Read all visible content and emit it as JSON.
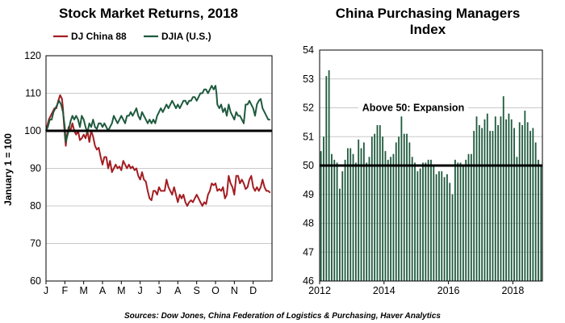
{
  "sources": "Sources: Dow Jones, China Federation of Logistics & Purchasing, Haver Analytics",
  "chart_data": [
    {
      "type": "line",
      "title": "Stock Market Returns, 2018",
      "ylabel": "January 1 = 100",
      "ylim": [
        60,
        120
      ],
      "yticks": [
        60,
        70,
        80,
        90,
        100,
        110,
        120
      ],
      "x_tick_labels": [
        "J",
        "F",
        "M",
        "A",
        "M",
        "J",
        "J",
        "A",
        "S",
        "O",
        "N",
        "D"
      ],
      "x_unit": "month of 2018 (0 = Jan 1, 12 = Dec 31)",
      "xlim": [
        0,
        12
      ],
      "reference_line": 100,
      "grid": true,
      "legend_position": "top",
      "series": [
        {
          "name": "DJ China 88",
          "color": "#a31d22",
          "points": [
            [
              0,
              100
            ],
            [
              0.15,
              103
            ],
            [
              0.3,
              104.5
            ],
            [
              0.45,
              106
            ],
            [
              0.55,
              106
            ],
            [
              0.65,
              108
            ],
            [
              0.75,
              109.5
            ],
            [
              0.85,
              108.5
            ],
            [
              0.9,
              106
            ],
            [
              0.95,
              102
            ],
            [
              1.0,
              99
            ],
            [
              1.05,
              96
            ],
            [
              1.1,
              98.5
            ],
            [
              1.2,
              101
            ],
            [
              1.3,
              100
            ],
            [
              1.4,
              102
            ],
            [
              1.5,
              100
            ],
            [
              1.6,
              99
            ],
            [
              1.7,
              100
            ],
            [
              1.8,
              97.5
            ],
            [
              1.9,
              98
            ],
            [
              2.0,
              99
            ],
            [
              2.1,
              98
            ],
            [
              2.2,
              100
            ],
            [
              2.3,
              97
            ],
            [
              2.4,
              100
            ],
            [
              2.5,
              98.5
            ],
            [
              2.6,
              96
            ],
            [
              2.7,
              95
            ],
            [
              2.8,
              95.5
            ],
            [
              2.9,
              93
            ],
            [
              3.0,
              91
            ],
            [
              3.1,
              93
            ],
            [
              3.2,
              93
            ],
            [
              3.3,
              90
            ],
            [
              3.4,
              92
            ],
            [
              3.5,
              89
            ],
            [
              3.6,
              90
            ],
            [
              3.7,
              91
            ],
            [
              3.8,
              90
            ],
            [
              3.9,
              90.5
            ],
            [
              4.0,
              89.5
            ],
            [
              4.1,
              92
            ],
            [
              4.2,
              91
            ],
            [
              4.3,
              90
            ],
            [
              4.4,
              91
            ],
            [
              4.5,
              90
            ],
            [
              4.6,
              90.5
            ],
            [
              4.7,
              89.5
            ],
            [
              4.8,
              90
            ],
            [
              4.9,
              88
            ],
            [
              5.0,
              87
            ],
            [
              5.1,
              89
            ],
            [
              5.2,
              87
            ],
            [
              5.3,
              86.5
            ],
            [
              5.4,
              84
            ],
            [
              5.5,
              82
            ],
            [
              5.6,
              81.5
            ],
            [
              5.7,
              84
            ],
            [
              5.8,
              84
            ],
            [
              5.9,
              83
            ],
            [
              6.0,
              85
            ],
            [
              6.1,
              84
            ],
            [
              6.2,
              84
            ],
            [
              6.3,
              84
            ],
            [
              6.4,
              87
            ],
            [
              6.5,
              85
            ],
            [
              6.6,
              84
            ],
            [
              6.7,
              83
            ],
            [
              6.8,
              85
            ],
            [
              6.9,
              83
            ],
            [
              7.0,
              81
            ],
            [
              7.1,
              83
            ],
            [
              7.2,
              82
            ],
            [
              7.3,
              83
            ],
            [
              7.4,
              81
            ],
            [
              7.5,
              80
            ],
            [
              7.6,
              81
            ],
            [
              7.7,
              81.5
            ],
            [
              7.8,
              81
            ],
            [
              7.9,
              82
            ],
            [
              8.0,
              83
            ],
            [
              8.1,
              82
            ],
            [
              8.2,
              81
            ],
            [
              8.3,
              80
            ],
            [
              8.4,
              81
            ],
            [
              8.5,
              80.5
            ],
            [
              8.6,
              83
            ],
            [
              8.7,
              84
            ],
            [
              8.8,
              86
            ],
            [
              8.9,
              85.5
            ],
            [
              9.0,
              86
            ],
            [
              9.1,
              84
            ],
            [
              9.2,
              84.5
            ],
            [
              9.3,
              84
            ],
            [
              9.4,
              85
            ],
            [
              9.5,
              82
            ],
            [
              9.6,
              83
            ],
            [
              9.7,
              88
            ],
            [
              9.8,
              86
            ],
            [
              9.9,
              85
            ],
            [
              10.0,
              83
            ],
            [
              10.1,
              88
            ],
            [
              10.2,
              88
            ],
            [
              10.3,
              86
            ],
            [
              10.4,
              87
            ],
            [
              10.5,
              86
            ],
            [
              10.6,
              84.5
            ],
            [
              10.7,
              85
            ],
            [
              10.8,
              87
            ],
            [
              10.9,
              88
            ],
            [
              11.0,
              85
            ],
            [
              11.1,
              84
            ],
            [
              11.2,
              85
            ],
            [
              11.3,
              84
            ],
            [
              11.4,
              85
            ],
            [
              11.5,
              87
            ],
            [
              11.6,
              85
            ],
            [
              11.7,
              84
            ],
            [
              11.8,
              84
            ],
            [
              11.9,
              83.5
            ]
          ]
        },
        {
          "name": "DJIA (U.S.)",
          "color": "#1f5a3e",
          "points": [
            [
              0,
              100
            ],
            [
              0.1,
              101
            ],
            [
              0.2,
              103
            ],
            [
              0.3,
              103
            ],
            [
              0.4,
              105
            ],
            [
              0.5,
              106
            ],
            [
              0.6,
              107
            ],
            [
              0.7,
              108
            ],
            [
              0.8,
              107
            ],
            [
              0.9,
              105
            ],
            [
              1.0,
              101
            ],
            [
              1.05,
              97
            ],
            [
              1.1,
              98
            ],
            [
              1.2,
              100
            ],
            [
              1.3,
              102.5
            ],
            [
              1.4,
              104
            ],
            [
              1.5,
              103
            ],
            [
              1.6,
              104
            ],
            [
              1.7,
              103
            ],
            [
              1.8,
              101
            ],
            [
              1.9,
              104
            ],
            [
              2.0,
              103
            ],
            [
              2.1,
              101
            ],
            [
              2.2,
              99.5
            ],
            [
              2.3,
              102
            ],
            [
              2.4,
              101
            ],
            [
              2.5,
              103
            ],
            [
              2.6,
              101
            ],
            [
              2.7,
              100.5
            ],
            [
              2.8,
              102
            ],
            [
              2.9,
              102
            ],
            [
              3.0,
              101
            ],
            [
              3.1,
              102
            ],
            [
              3.2,
              101
            ],
            [
              3.3,
              100
            ],
            [
              3.4,
              101
            ],
            [
              3.5,
              102
            ],
            [
              3.6,
              104
            ],
            [
              3.7,
              103
            ],
            [
              3.8,
              102
            ],
            [
              3.9,
              103
            ],
            [
              4.0,
              104
            ],
            [
              4.1,
              103
            ],
            [
              4.2,
              102
            ],
            [
              4.3,
              104
            ],
            [
              4.4,
              104
            ],
            [
              4.5,
              105
            ],
            [
              4.6,
              104
            ],
            [
              4.7,
              105
            ],
            [
              4.8,
              106
            ],
            [
              4.9,
              104
            ],
            [
              5.0,
              103
            ],
            [
              5.1,
              105
            ],
            [
              5.2,
              104
            ],
            [
              5.3,
              103
            ],
            [
              5.4,
              102
            ],
            [
              5.5,
              103
            ],
            [
              5.6,
              102
            ],
            [
              5.7,
              103
            ],
            [
              5.8,
              102
            ],
            [
              5.9,
              104
            ],
            [
              6.0,
              105
            ],
            [
              6.1,
              106
            ],
            [
              6.2,
              105
            ],
            [
              6.3,
              106
            ],
            [
              6.4,
              107
            ],
            [
              6.5,
              106
            ],
            [
              6.6,
              107
            ],
            [
              6.7,
              108
            ],
            [
              6.8,
              107
            ],
            [
              6.9,
              106
            ],
            [
              7.0,
              107
            ],
            [
              7.1,
              106
            ],
            [
              7.2,
              107
            ],
            [
              7.3,
              108
            ],
            [
              7.4,
              108
            ],
            [
              7.5,
              107
            ],
            [
              7.6,
              108
            ],
            [
              7.7,
              108
            ],
            [
              7.8,
              109
            ],
            [
              7.9,
              109
            ],
            [
              8.0,
              108
            ],
            [
              8.1,
              109
            ],
            [
              8.2,
              110
            ],
            [
              8.3,
              110
            ],
            [
              8.4,
              111
            ],
            [
              8.5,
              111
            ],
            [
              8.6,
              110
            ],
            [
              8.7,
              111
            ],
            [
              8.8,
              112
            ],
            [
              8.9,
              111
            ],
            [
              9.0,
              112
            ],
            [
              9.05,
              110
            ],
            [
              9.1,
              107
            ],
            [
              9.2,
              106
            ],
            [
              9.3,
              107
            ],
            [
              9.4,
              105
            ],
            [
              9.5,
              106
            ],
            [
              9.6,
              104
            ],
            [
              9.7,
              107
            ],
            [
              9.8,
              105
            ],
            [
              9.9,
              104
            ],
            [
              10.0,
              103
            ],
            [
              10.1,
              105
            ],
            [
              10.2,
              104
            ],
            [
              10.3,
              104
            ],
            [
              10.4,
              103
            ],
            [
              10.5,
              102
            ],
            [
              10.6,
              107
            ],
            [
              10.7,
              107
            ],
            [
              10.8,
              108
            ],
            [
              10.9,
              107
            ],
            [
              11.0,
              106
            ],
            [
              11.1,
              104
            ],
            [
              11.2,
              107
            ],
            [
              11.3,
              108
            ],
            [
              11.4,
              108.5
            ],
            [
              11.5,
              106
            ],
            [
              11.6,
              105
            ],
            [
              11.7,
              104
            ],
            [
              11.8,
              103
            ],
            [
              11.9,
              103
            ]
          ]
        }
      ]
    },
    {
      "type": "bar",
      "title": "China Purchasing Managers Index",
      "title_lines": [
        "China Purchasing Managers",
        "Index"
      ],
      "ylim": [
        46,
        54
      ],
      "yticks": [
        46,
        47,
        48,
        49,
        50,
        51,
        52,
        53,
        54
      ],
      "xlim": [
        2012,
        2018.917
      ],
      "xticks": [
        2012,
        2014,
        2016,
        2018
      ],
      "reference_line": 50,
      "annotation": "Above 50: Expansion",
      "grid": true,
      "bar_color": "#1f5a3e",
      "start": "2012-01",
      "values": [
        50.5,
        51.0,
        53.1,
        53.3,
        50.4,
        50.2,
        50.1,
        49.2,
        49.8,
        50.2,
        50.6,
        50.6,
        50.4,
        50.1,
        50.9,
        50.6,
        50.8,
        50.1,
        50.3,
        51.0,
        51.1,
        51.4,
        51.4,
        51.0,
        50.5,
        50.2,
        50.3,
        50.4,
        50.8,
        51.0,
        51.7,
        51.1,
        51.1,
        50.8,
        50.3,
        50.1,
        49.8,
        49.9,
        50.1,
        50.1,
        50.2,
        50.2,
        50.0,
        49.7,
        49.8,
        49.8,
        49.6,
        49.7,
        49.4,
        49.0,
        50.2,
        50.1,
        50.1,
        50.0,
        50.2,
        50.4,
        50.4,
        51.2,
        51.7,
        51.4,
        51.3,
        51.6,
        51.8,
        51.2,
        51.2,
        51.7,
        51.4,
        51.7,
        52.4,
        51.6,
        51.8,
        51.6,
        51.3,
        50.3,
        51.5,
        51.4,
        51.9,
        51.5,
        51.2,
        51.3,
        50.8,
        50.2,
        50.0
      ]
    }
  ]
}
